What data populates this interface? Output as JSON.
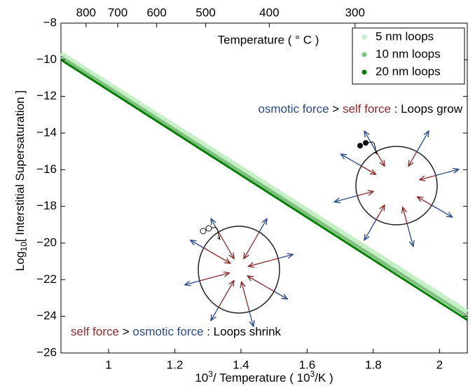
{
  "chart_data": {
    "type": "line",
    "xlabel_base": "10",
    "xlabel_sup": "3",
    "xlabel_mid": "/ Temperature ( 10",
    "xlabel_sup2": "3",
    "xlabel_end": "/K )",
    "ylabel_base": "Log",
    "ylabel_sub": "10",
    "ylabel_end": "[ Interstitial Supersaturation ]",
    "x2label": "Temperature ( ° C )",
    "x": [
      0.856,
      2.084
    ],
    "series": [
      {
        "name": "5 nm loops",
        "color": "#c6efc6",
        "values": [
          -9.65,
          -23.75
        ]
      },
      {
        "name": "10 nm loops",
        "color": "#80c080",
        "values": [
          -9.85,
          -24.0
        ]
      },
      {
        "name": "20 nm loops",
        "color": "#008000",
        "values": [
          -10.0,
          -24.2
        ]
      }
    ],
    "xlim": [
      0.856,
      2.084
    ],
    "ylim": [
      -26,
      -8
    ],
    "xticks": [
      1,
      1.2,
      1.4,
      1.6,
      1.8,
      2
    ],
    "yticks": [
      {
        "value": -26,
        "label": "−26"
      },
      {
        "value": -24,
        "label": "−24"
      },
      {
        "value": -22,
        "label": "−22"
      },
      {
        "value": -20,
        "label": "−20"
      },
      {
        "value": -18,
        "label": "−18"
      },
      {
        "value": -16,
        "label": "−16"
      },
      {
        "value": -14,
        "label": "−14"
      },
      {
        "value": -12,
        "label": "−12"
      },
      {
        "value": -10,
        "label": "−10"
      },
      {
        "value": -8,
        "label": "−8"
      }
    ],
    "x2ticks": [
      800,
      700,
      600,
      500,
      400,
      300
    ],
    "legend": "upper right",
    "annotations": {
      "grow": [
        "osmotic force",
        ">",
        "self force",
        ": Loops grow"
      ],
      "shrink": [
        "self force",
        ">",
        "osmotic force",
        ": Loops shrink"
      ]
    }
  }
}
